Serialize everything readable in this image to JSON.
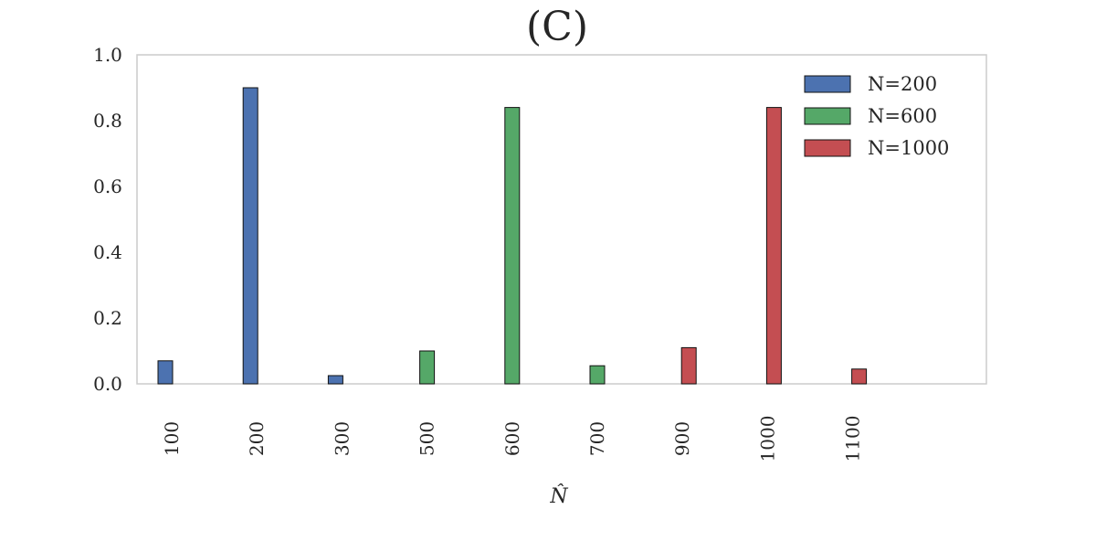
{
  "chart_data": {
    "type": "bar",
    "title": "(C)",
    "xlabel": "N̂",
    "ylabel": "",
    "ylim": [
      0,
      1.0
    ],
    "yticks": [
      "0.0",
      "0.2",
      "0.4",
      "0.6",
      "0.8",
      "1.0"
    ],
    "categories": [
      "100",
      "200",
      "300",
      "500",
      "600",
      "700",
      "900",
      "1000",
      "1100"
    ],
    "series": [
      {
        "name": "N=200",
        "color": "#4c72b0",
        "values": [
          0.07,
          0.9,
          0.025,
          0,
          0,
          0,
          0,
          0,
          0
        ]
      },
      {
        "name": "N=600",
        "color": "#55a868",
        "values": [
          0,
          0,
          0,
          0.1,
          0.84,
          0.055,
          0,
          0,
          0
        ]
      },
      {
        "name": "N=1000",
        "color": "#c44e52",
        "values": [
          0,
          0,
          0,
          0,
          0,
          0,
          0.11,
          0.84,
          0.045
        ]
      }
    ],
    "legend_position": "top-right",
    "grid": false
  }
}
